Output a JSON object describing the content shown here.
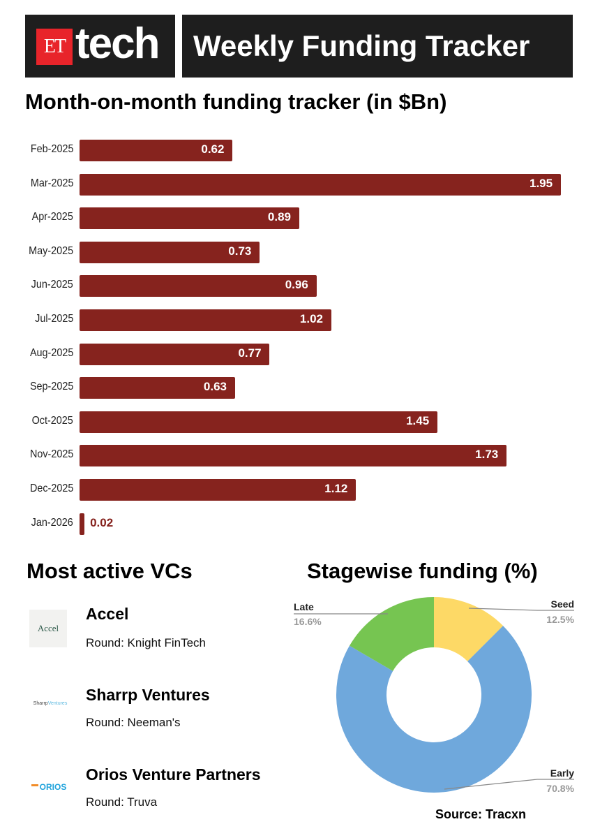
{
  "header": {
    "logo_et": "ET",
    "logo_tech": "tech",
    "title": "Weekly Funding Tracker"
  },
  "chart_data": [
    {
      "type": "bar",
      "orientation": "horizontal",
      "title": "Month-on-month funding tracker (in $Bn)",
      "categories": [
        "Feb-2025",
        "Mar-2025",
        "Apr-2025",
        "May-2025",
        "Jun-2025",
        "Jul-2025",
        "Aug-2025",
        "Sep-2025",
        "Oct-2025",
        "Nov-2025",
        "Dec-2025",
        "Jan-2026"
      ],
      "values": [
        0.62,
        1.95,
        0.89,
        0.73,
        0.96,
        1.02,
        0.77,
        0.63,
        1.45,
        1.73,
        1.12,
        0.02
      ],
      "labels": [
        "0.62",
        "1.95",
        "0.89",
        "0.73",
        "0.96",
        "1.02",
        "0.77",
        "0.63",
        "1.45",
        "1.73",
        "1.12",
        "0.02"
      ],
      "color": "#86231e"
    },
    {
      "type": "pie",
      "donut": true,
      "title": "Stagewise funding (%)",
      "slices": [
        {
          "name": "Seed",
          "value": 12.5,
          "label": "12.5%",
          "color": "#fdd966"
        },
        {
          "name": "Early",
          "value": 70.8,
          "label": "70.8%",
          "color": "#6fa8dc"
        },
        {
          "name": "Late",
          "value": 16.6,
          "label": "16.6%",
          "color": "#76c551"
        }
      ]
    }
  ],
  "vcs": {
    "title": "Most active VCs",
    "items": [
      {
        "name": "Accel",
        "round": "Round: Knight FinTech",
        "logo": "Accel"
      },
      {
        "name": "Sharrp Ventures",
        "round": "Round: Neeman's",
        "logo": "Sharrp",
        "logo2": "Ventures"
      },
      {
        "name": "Orios Venture Partners",
        "round": "Round: Truva",
        "logo": "ORIOS"
      }
    ]
  },
  "source": "Source: Tracxn"
}
